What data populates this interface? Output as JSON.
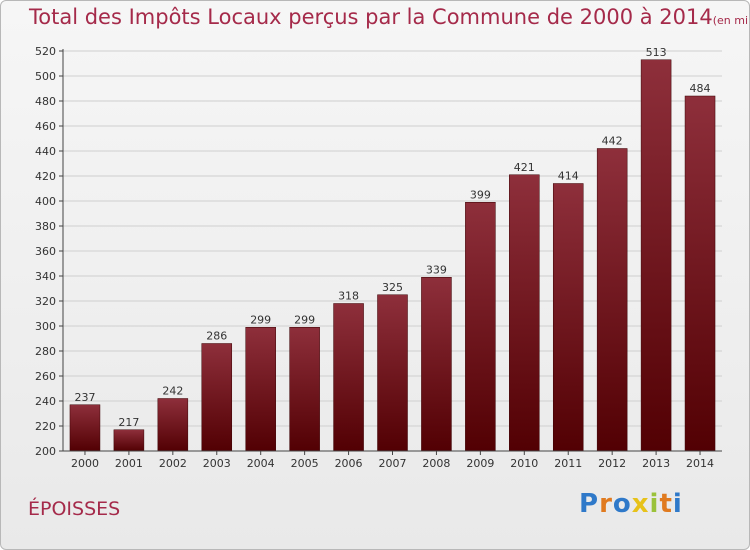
{
  "header": {
    "title": "Total des Impôts Locaux perçus par la Commune de 2000 à 2014",
    "unit": "(en milliers d'€)"
  },
  "footer": {
    "commune": "ÉPOISSES",
    "logo_letters": [
      "P",
      "r",
      "o",
      "x",
      "i",
      "t",
      "i"
    ],
    "logo_colors": [
      "#2f79c9",
      "#e07a1f",
      "#2f79c9",
      "#e7c21a",
      "#9bc23a",
      "#e07a1f",
      "#2f79c9"
    ]
  },
  "colors": {
    "bar_top": "#8e2f3b",
    "bar_bottom": "#520003",
    "title": "#a52a4a",
    "grid": "#cfcfcf",
    "axis": "#444444",
    "text": "#333333"
  },
  "chart_data": {
    "type": "bar",
    "title": "Total des Impôts Locaux perçus par la Commune de 2000 à 2014",
    "subtitle": "(en milliers d'€)",
    "xlabel": "",
    "ylabel": "",
    "categories": [
      "2000",
      "2001",
      "2002",
      "2003",
      "2004",
      "2005",
      "2006",
      "2007",
      "2008",
      "2009",
      "2010",
      "2011",
      "2012",
      "2013",
      "2014"
    ],
    "values": [
      237,
      217,
      242,
      286,
      299,
      299,
      318,
      325,
      339,
      399,
      421,
      414,
      442,
      513,
      484
    ],
    "ylim": [
      200,
      520
    ],
    "yticks": [
      200,
      220,
      240,
      260,
      280,
      300,
      320,
      340,
      360,
      380,
      400,
      420,
      440,
      460,
      480,
      500,
      520
    ],
    "grid": true,
    "legend": "none"
  }
}
